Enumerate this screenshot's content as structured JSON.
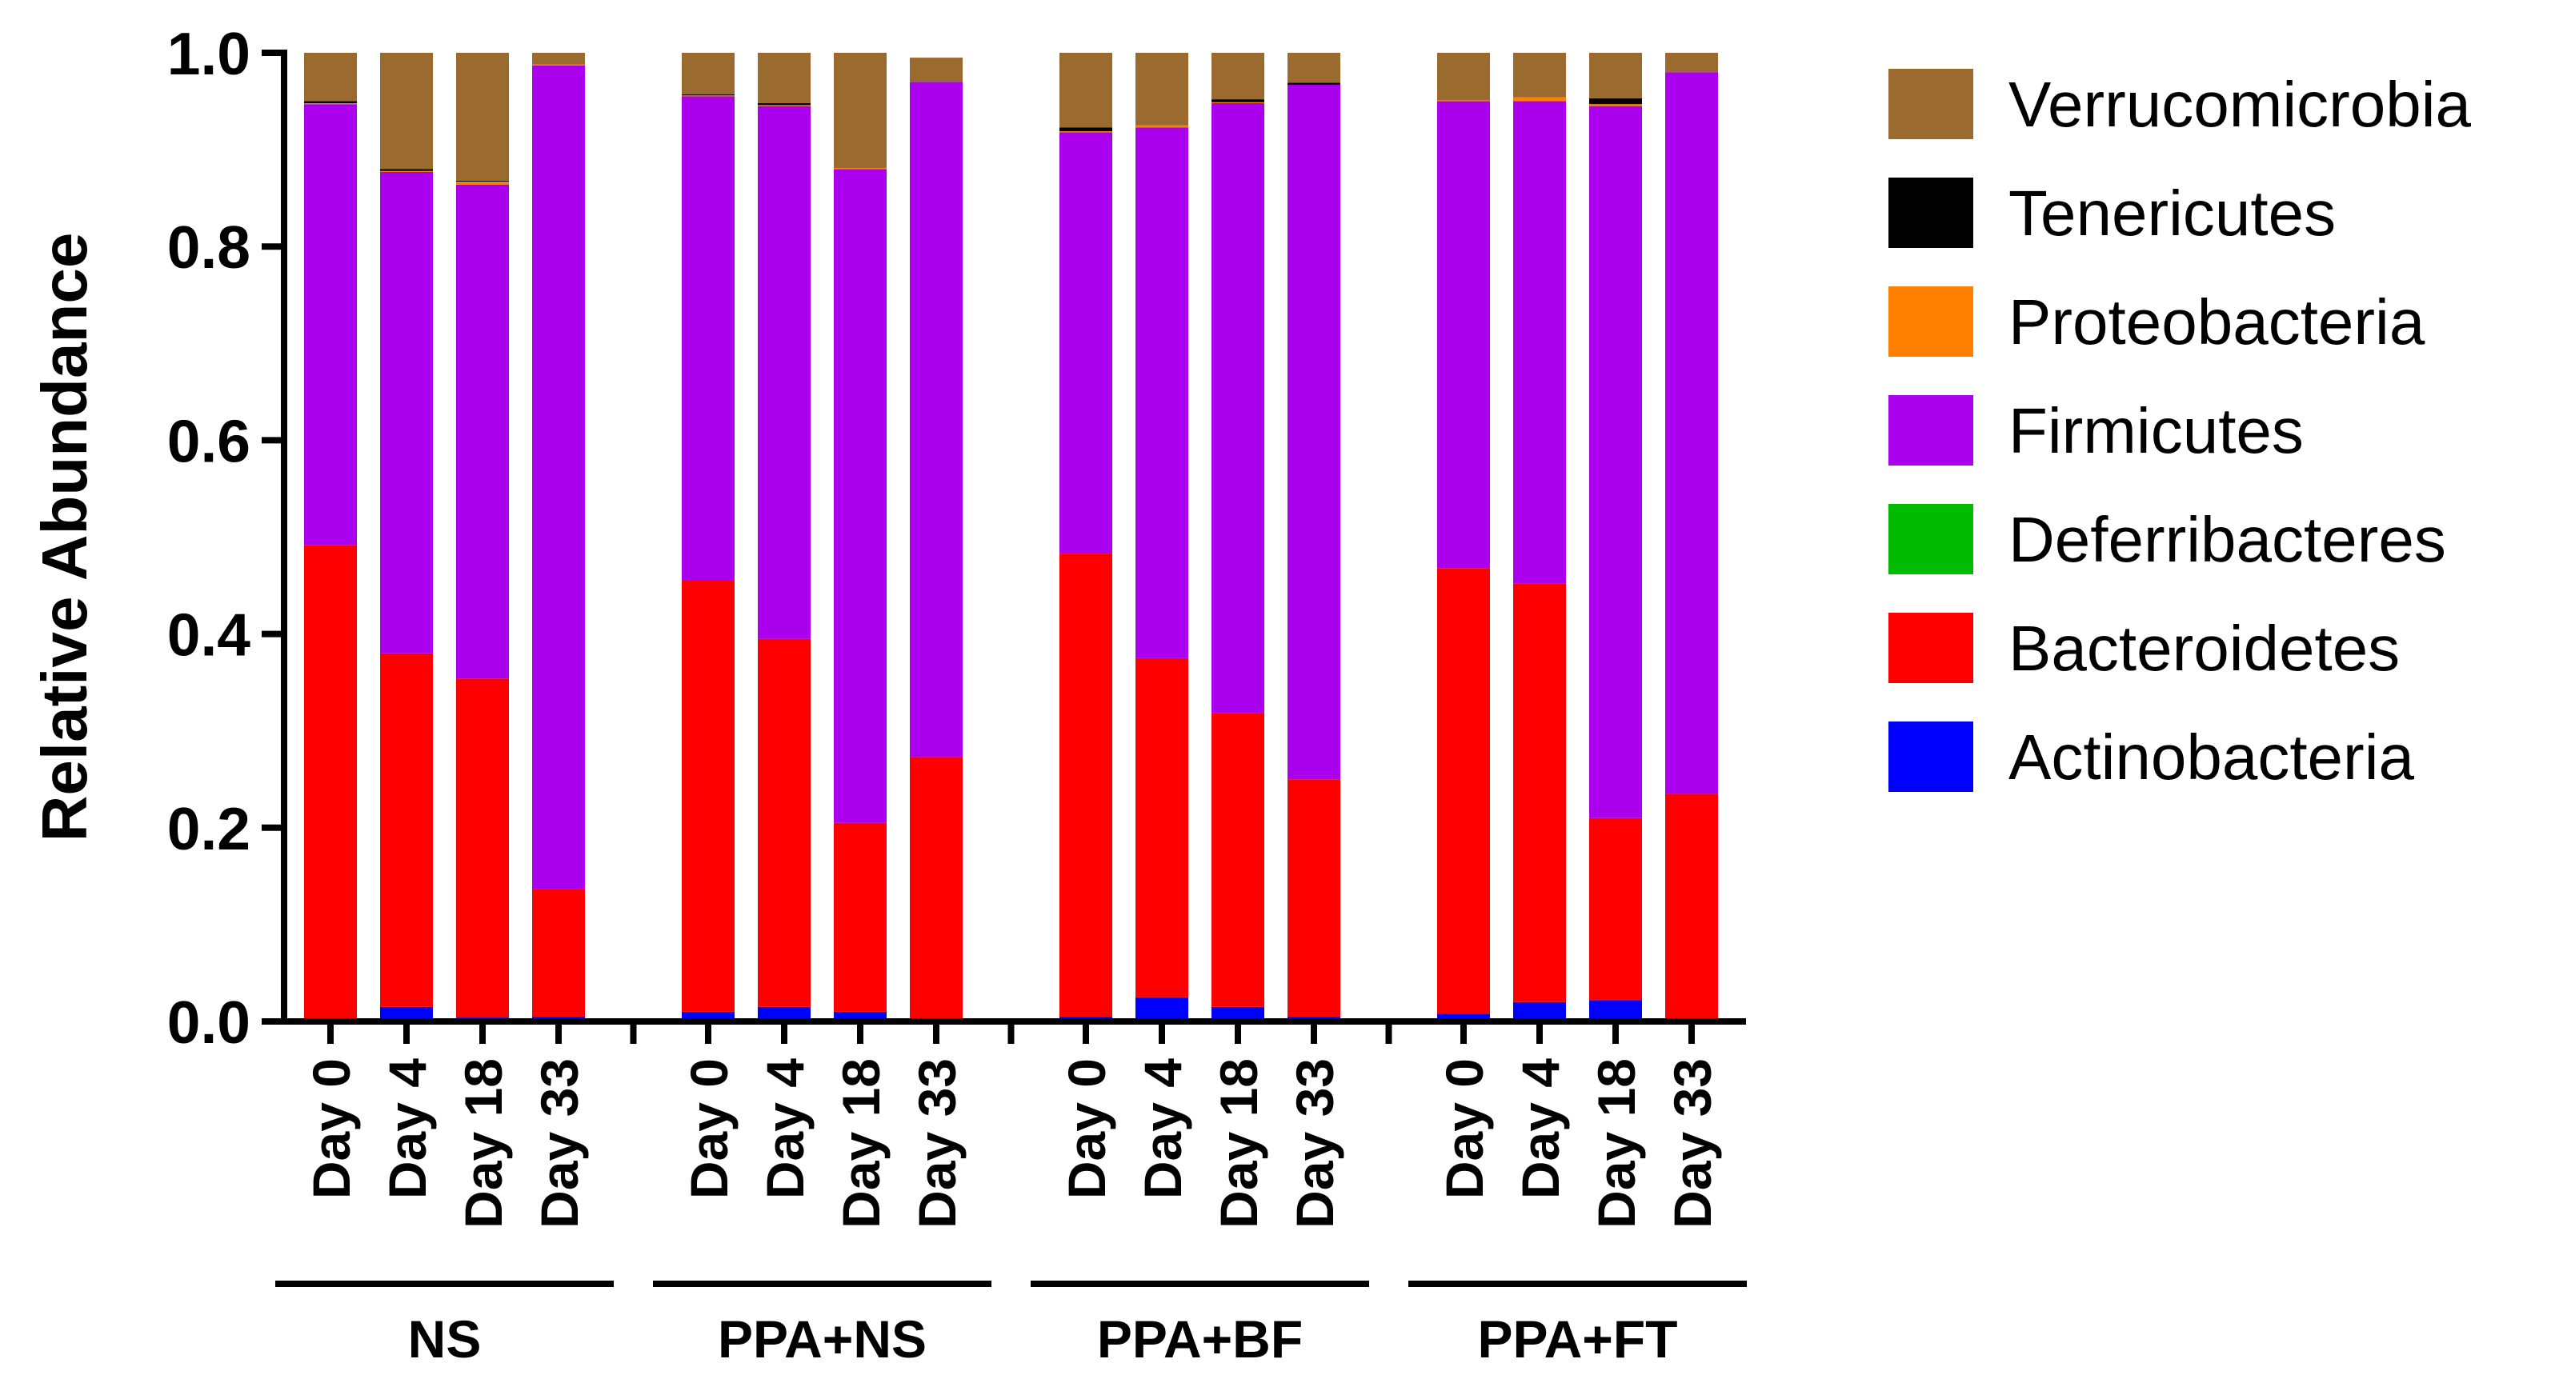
{
  "chart_data": {
    "type": "bar",
    "stacked": true,
    "ylabel": "Relative Abundance",
    "ylim": [
      0,
      1.0
    ],
    "yticks": [
      "0.0",
      "0.2",
      "0.4",
      "0.6",
      "0.8",
      "1.0"
    ],
    "groups": [
      {
        "name": "NS",
        "categories": [
          "Day 0",
          "Day 4",
          "Day 18",
          "Day 33"
        ]
      },
      {
        "name": "PPA+NS",
        "categories": [
          "Day 0",
          "Day 4",
          "Day 18",
          "Day 33"
        ]
      },
      {
        "name": "PPA+BF",
        "categories": [
          "Day 0",
          "Day 4",
          "Day 18",
          "Day 33"
        ]
      },
      {
        "name": "PPA+FT",
        "categories": [
          "Day 0",
          "Day 4",
          "Day 18",
          "Day 33"
        ]
      }
    ],
    "series": [
      {
        "name": "Actinobacteria",
        "color": "#0000ff",
        "values": [
          0.002,
          0.015,
          0.004,
          0.005,
          0.01,
          0.015,
          0.01,
          0.003,
          0.005,
          0.025,
          0.015,
          0.005,
          0.008,
          0.02,
          0.022,
          0.003
        ]
      },
      {
        "name": "Bacteroidetes",
        "color": "#ff0000",
        "values": [
          0.49,
          0.365,
          0.35,
          0.132,
          0.445,
          0.38,
          0.195,
          0.27,
          0.478,
          0.35,
          0.303,
          0.245,
          0.46,
          0.432,
          0.188,
          0.232
        ]
      },
      {
        "name": "Deferribacteres",
        "color": "#00bb00",
        "values": [
          0.0,
          0.0,
          0.0,
          0.0,
          0.0,
          0.0,
          0.0,
          0.0,
          0.0,
          0.0,
          0.0,
          0.0,
          0.0,
          0.0,
          0.0,
          0.0
        ]
      },
      {
        "name": "Firmicutes",
        "color": "#aa00ee",
        "values": [
          0.455,
          0.497,
          0.51,
          0.85,
          0.5,
          0.55,
          0.675,
          0.697,
          0.435,
          0.548,
          0.63,
          0.717,
          0.482,
          0.498,
          0.735,
          0.745
        ]
      },
      {
        "name": "Proteobacteria",
        "color": "#ff8000",
        "values": [
          0.001,
          0.001,
          0.003,
          0.001,
          0.001,
          0.001,
          0.001,
          0.0,
          0.001,
          0.002,
          0.001,
          0.0,
          0.001,
          0.004,
          0.002,
          0.0
        ]
      },
      {
        "name": "Tenericutes",
        "color": "#000000",
        "values": [
          0.002,
          0.002,
          0.001,
          0.0,
          0.001,
          0.002,
          0.0,
          0.0,
          0.004,
          0.0,
          0.003,
          0.002,
          0.0,
          0.0,
          0.006,
          0.0
        ]
      },
      {
        "name": "Verrucomicrobia",
        "color": "#9b6a2f",
        "values": [
          0.05,
          0.12,
          0.132,
          0.012,
          0.043,
          0.052,
          0.119,
          0.025,
          0.077,
          0.075,
          0.048,
          0.031,
          0.049,
          0.046,
          0.047,
          0.02
        ]
      }
    ],
    "legend": {
      "placement": "right",
      "order": [
        "Verrucomicrobia",
        "Tenericutes",
        "Proteobacteria",
        "Firmicutes",
        "Deferribacteres",
        "Bacteroidetes",
        "Actinobacteria"
      ]
    }
  }
}
